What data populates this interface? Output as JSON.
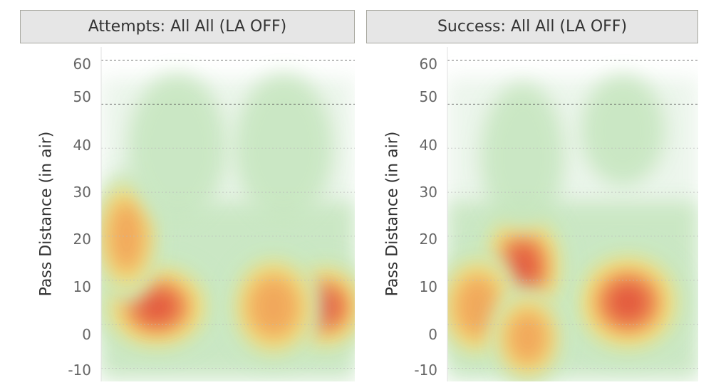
{
  "chart_data": [
    {
      "type": "heatmap",
      "title": "Attempts: All All (LA OFF)",
      "ylabel": "Pass Distance (in air)",
      "xlabel": "",
      "ylim": [
        -13,
        63
      ],
      "yticks": [
        60,
        50,
        40,
        30,
        20,
        10,
        0,
        -10
      ],
      "grid": true,
      "colors": [
        "#eaf4ea",
        "#c7e6c0",
        "#f4e27a",
        "#f2a65a",
        "#e3563d"
      ],
      "hotspots": [
        {
          "x": 0.22,
          "y": 4,
          "intensity": 1.0,
          "rx": 0.13,
          "ry": 6
        },
        {
          "x": 0.88,
          "y": 4,
          "intensity": 0.9,
          "rx": 0.1,
          "ry": 6
        },
        {
          "x": 0.68,
          "y": 4,
          "intensity": 0.55,
          "rx": 0.1,
          "ry": 7
        },
        {
          "x": 0.1,
          "y": 20,
          "intensity": 0.5,
          "rx": 0.07,
          "ry": 8
        },
        {
          "x": 0.3,
          "y": 40,
          "intensity": 0.2,
          "rx": 0.14,
          "ry": 12
        },
        {
          "x": 0.72,
          "y": 40,
          "intensity": 0.18,
          "rx": 0.14,
          "ry": 12
        }
      ]
    },
    {
      "type": "heatmap",
      "title": "Success: All All (LA OFF)",
      "ylabel": "Pass Distance (in air)",
      "xlabel": "",
      "ylim": [
        -13,
        63
      ],
      "yticks": [
        60,
        50,
        40,
        30,
        20,
        10,
        0,
        -10
      ],
      "grid": true,
      "colors": [
        "#eaf4ea",
        "#c7e6c0",
        "#f4e27a",
        "#f2a65a",
        "#e3563d"
      ],
      "hotspots": [
        {
          "x": 0.72,
          "y": 5,
          "intensity": 1.0,
          "rx": 0.13,
          "ry": 7
        },
        {
          "x": 0.3,
          "y": 13,
          "intensity": 0.8,
          "rx": 0.1,
          "ry": 8
        },
        {
          "x": 0.12,
          "y": 4,
          "intensity": 0.55,
          "rx": 0.09,
          "ry": 7
        },
        {
          "x": 0.32,
          "y": -3,
          "intensity": 0.5,
          "rx": 0.08,
          "ry": 6
        },
        {
          "x": 0.3,
          "y": 38,
          "intensity": 0.25,
          "rx": 0.12,
          "ry": 12
        },
        {
          "x": 0.7,
          "y": 44,
          "intensity": 0.3,
          "rx": 0.12,
          "ry": 9
        }
      ]
    }
  ]
}
